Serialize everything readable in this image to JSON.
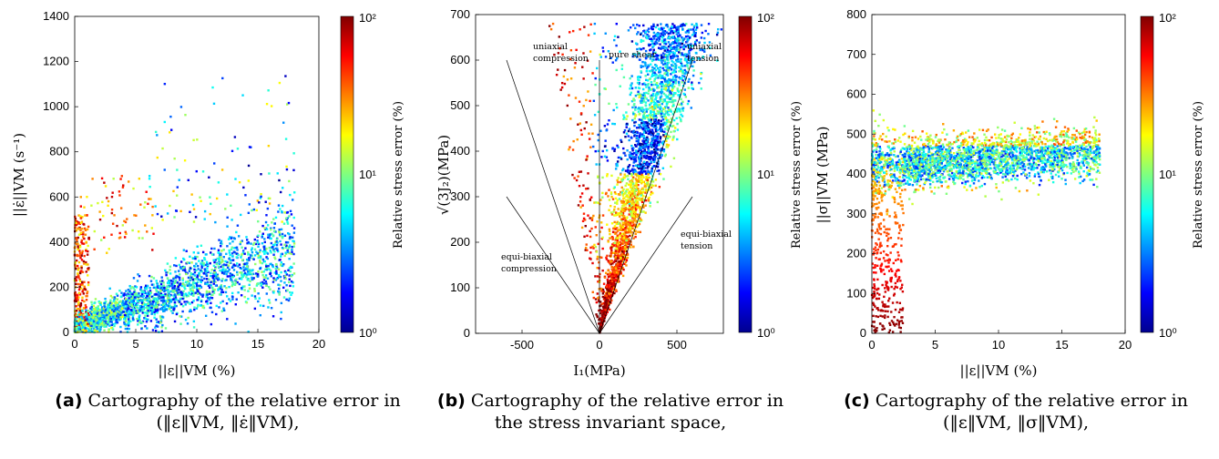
{
  "colors": {
    "colormap": "jet",
    "axis": "#000000"
  },
  "chart_data": [
    {
      "type": "scatter",
      "xlabel": "||ε||VM (%)",
      "ylabel": "||ε̇||VM (s⁻¹)",
      "xlim": [
        0,
        20
      ],
      "ylim": [
        0,
        1400
      ],
      "xticks": [
        0,
        5,
        10,
        15,
        20
      ],
      "yticks": [
        0,
        200,
        400,
        600,
        800,
        1000,
        1200,
        1400
      ],
      "colorbar": {
        "label": "Relative stress error (%)",
        "scale": "log",
        "ticks": [
          "10⁰",
          "10¹",
          "10²"
        ],
        "range": [
          1,
          100
        ],
        "colormap": "jet"
      },
      "clusters": [
        {
          "x_range": [
            0,
            18
          ],
          "y_range": [
            0,
            450
          ],
          "error_range": [
            1,
            30
          ]
        },
        {
          "x_range": [
            0,
            3
          ],
          "y_range": [
            200,
            600
          ],
          "error_range": [
            20,
            100
          ]
        },
        {
          "x_range": [
            8,
            17
          ],
          "y_range": [
            600,
            1200
          ],
          "error_range": [
            1,
            20
          ]
        }
      ]
    },
    {
      "type": "scatter",
      "xlabel": "I₁(MPa)",
      "ylabel": "√(3J₂)(MPa)",
      "xlim": [
        -800,
        800
      ],
      "ylim": [
        0,
        700
      ],
      "xticks": [
        -500,
        0,
        500
      ],
      "yticks": [
        0,
        100,
        200,
        300,
        400,
        500,
        600,
        700
      ],
      "colorbar": {
        "label": "Relative stress error (%)",
        "scale": "log",
        "ticks": [
          "10⁰",
          "10¹",
          "10²"
        ],
        "range": [
          1,
          100
        ],
        "colormap": "jet"
      },
      "reference_lines": [
        {
          "name": "uniaxial compression",
          "x": [
            0,
            -600
          ],
          "y": [
            0,
            600
          ]
        },
        {
          "name": "pure shear",
          "x": [
            0,
            0
          ],
          "y": [
            0,
            600
          ]
        },
        {
          "name": "uniaxial tension",
          "x": [
            0,
            600
          ],
          "y": [
            0,
            600
          ]
        },
        {
          "name": "equi-biaxial compression",
          "x": [
            0,
            -600
          ],
          "y": [
            0,
            300
          ]
        },
        {
          "name": "equi-biaxial tension",
          "x": [
            0,
            600
          ],
          "y": [
            0,
            300
          ]
        }
      ],
      "annotations": [
        "uniaxial",
        "compression",
        "pure shear",
        "uniaxial",
        "tension",
        "equi-biaxial",
        "compression",
        "equi-biaxial",
        "tension"
      ]
    },
    {
      "type": "scatter",
      "xlabel": "||ε||VM (%)",
      "ylabel": "||σ||VM (MPa)",
      "xlim": [
        0,
        20
      ],
      "ylim": [
        0,
        800
      ],
      "xticks": [
        0,
        5,
        10,
        15,
        20
      ],
      "yticks": [
        0,
        100,
        200,
        300,
        400,
        500,
        600,
        700,
        800
      ],
      "colorbar": {
        "label": "Relative stress error (%)",
        "scale": "log",
        "ticks": [
          "10⁰",
          "10¹",
          "10²"
        ],
        "range": [
          1,
          100
        ],
        "colormap": "jet"
      },
      "clusters": [
        {
          "x_range": [
            0,
            18
          ],
          "y_range": [
            360,
            500
          ],
          "error_range": [
            1,
            20
          ]
        },
        {
          "x_range": [
            0,
            2
          ],
          "y_range": [
            0,
            400
          ],
          "error_range": [
            20,
            100
          ]
        }
      ]
    }
  ],
  "captions": [
    {
      "label": "(a)",
      "line1": "Cartography of the relative error in",
      "line2": "(‖ε‖VM, ‖ε̇‖VM),"
    },
    {
      "label": "(b)",
      "line1": "Cartography of the relative error in",
      "line2": "the stress invariant space,"
    },
    {
      "label": "(c)",
      "line1": "Cartography of the relative error in",
      "line2": "(‖ε‖VM, ‖σ‖VM),"
    }
  ]
}
